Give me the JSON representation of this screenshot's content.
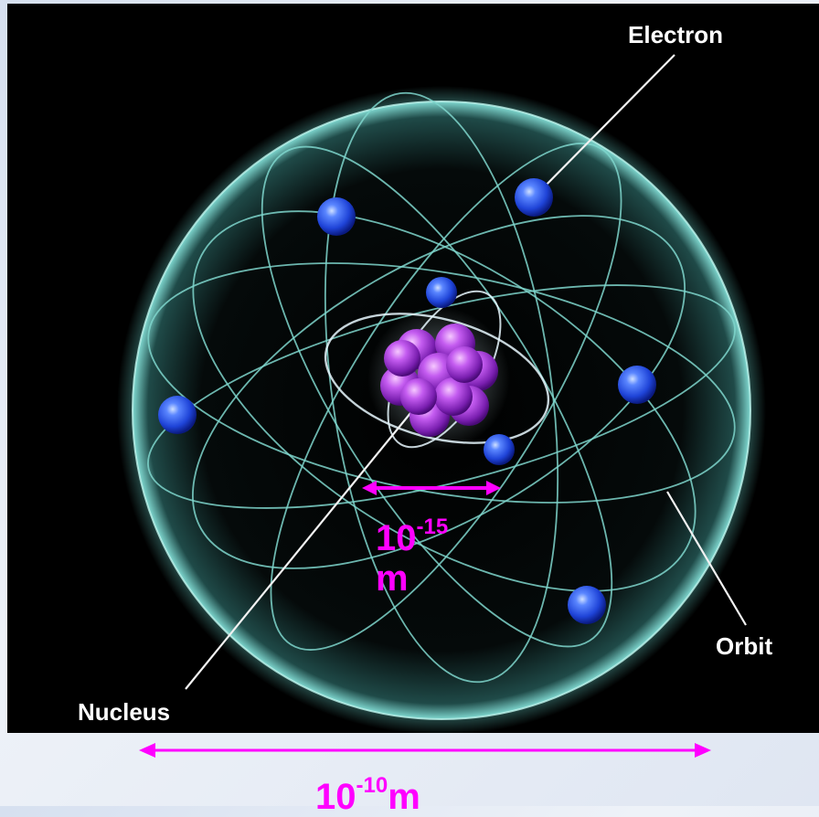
{
  "labels": {
    "electron": "Electron",
    "orbit": "Orbit",
    "nucleus": "Nucleus"
  },
  "nucleus_scale": {
    "base": "10",
    "exponent": "-15",
    "unit": "m"
  },
  "atom_scale": {
    "base": "10",
    "exponent": "-10",
    "unit": "m"
  },
  "colors": {
    "background": "#000000",
    "orbit_glow": "#9fe8e0",
    "electron": "#2a5cff",
    "nucleus": "#b040e0",
    "scale_arrow": "#ff00ff",
    "label": "#ffffff"
  },
  "icons": [
    "atom-diagram",
    "electron-icon",
    "nucleus-icon",
    "double-arrow-icon"
  ]
}
